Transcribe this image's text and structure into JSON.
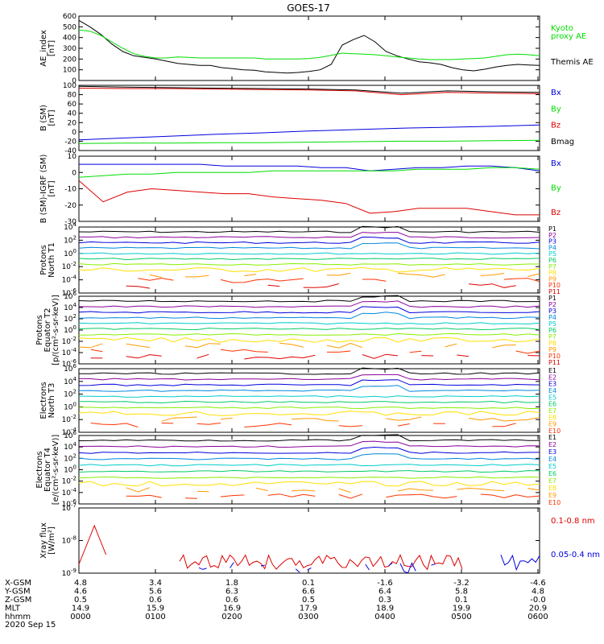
{
  "title": "GOES-17",
  "colors": {
    "black": "#000000",
    "green": "#00dd00",
    "blue": "#0000dd",
    "red": "#dd0000",
    "bmag": "#000000",
    "channel": [
      "#000000",
      "#8b0099",
      "#0000dd",
      "#0088dd",
      "#00cccc",
      "#00cc66",
      "#88ee00",
      "#ffe000",
      "#ff9900",
      "#ff3300",
      "#dd0000"
    ]
  },
  "chart_data": [
    {
      "type": "line",
      "ylabel": "AE_index\n[nT]",
      "ylim": [
        0,
        600
      ],
      "yticks": [
        "600",
        "500",
        "400",
        "300",
        "200",
        "100",
        "0"
      ],
      "legend": [
        {
          "label": "Kyoto\nproxy AE",
          "color": "green"
        },
        {
          "label": "Themis AE",
          "color": "black"
        }
      ],
      "series": [
        {
          "name": "Themis AE",
          "color": "black",
          "values": [
            560,
            500,
            430,
            340,
            270,
            230,
            215,
            200,
            180,
            160,
            150,
            140,
            140,
            120,
            110,
            100,
            95,
            80,
            75,
            70,
            75,
            85,
            100,
            150,
            330,
            380,
            420,
            360,
            270,
            230,
            200,
            175,
            165,
            150,
            120,
            100,
            90,
            105,
            125,
            140,
            150,
            145,
            140
          ]
        },
        {
          "name": "Kyoto proxy AE",
          "color": "green",
          "values": [
            470,
            460,
            420,
            360,
            300,
            250,
            225,
            210,
            210,
            220,
            215,
            210,
            210,
            210,
            210,
            210,
            210,
            200,
            200,
            200,
            200,
            205,
            215,
            235,
            255,
            250,
            245,
            240,
            230,
            220,
            210,
            200,
            195,
            195,
            195,
            200,
            205,
            210,
            225,
            240,
            245,
            240,
            230
          ]
        }
      ]
    },
    {
      "type": "line",
      "ylabel": "B (SM)\n[nT]",
      "ylim": [
        -40,
        100
      ],
      "yticks": [
        "100",
        "80",
        "60",
        "40",
        "20",
        "0",
        "-20",
        "-40"
      ],
      "legend": [
        {
          "label": "Bx",
          "color": "blue"
        },
        {
          "label": "By",
          "color": "green"
        },
        {
          "label": "Bz",
          "color": "red"
        },
        {
          "label": "Bmag",
          "color": "bmag"
        }
      ],
      "series": [
        {
          "name": "Bx",
          "color": "blue",
          "values": [
            -17,
            -13,
            -9,
            -5,
            -2,
            2,
            5,
            8,
            10,
            12,
            15
          ]
        },
        {
          "name": "By",
          "color": "green",
          "values": [
            -25,
            -24,
            -24,
            -23,
            -23,
            -22,
            -21,
            -20,
            -20,
            -19,
            -18
          ]
        },
        {
          "name": "Bz",
          "color": "red",
          "values": [
            94,
            93,
            93,
            92,
            91,
            90,
            88,
            80,
            85,
            83,
            82
          ]
        },
        {
          "name": "Bmag",
          "color": "bmag",
          "values": [
            98,
            96,
            95,
            94,
            93,
            92,
            90,
            83,
            88,
            86,
            85
          ]
        }
      ]
    },
    {
      "type": "line",
      "ylabel": "B (SM)-IGRF (SM)\n[nT]",
      "ylim": [
        -30,
        10
      ],
      "yticks": [
        "10",
        "0",
        "-10",
        "-20",
        "-30"
      ],
      "legend": [
        {
          "label": "Bx",
          "color": "blue"
        },
        {
          "label": "By",
          "color": "green"
        },
        {
          "label": "Bz",
          "color": "red"
        }
      ],
      "series": [
        {
          "name": "Bx",
          "color": "blue",
          "values": [
            5,
            5,
            5,
            5,
            5,
            5,
            4,
            4,
            4,
            4,
            3,
            3,
            1,
            2,
            3,
            3,
            4,
            4,
            3,
            1
          ]
        },
        {
          "name": "By",
          "color": "green",
          "values": [
            -3,
            -2,
            -1,
            -1,
            0,
            0,
            0,
            0,
            1,
            1,
            1,
            1,
            1,
            1,
            2,
            2,
            2,
            3,
            3,
            2
          ]
        },
        {
          "name": "Bz",
          "color": "red",
          "values": [
            -5,
            -18,
            -12,
            -10,
            -11,
            -12,
            -13,
            -13,
            -15,
            -16,
            -17,
            -19,
            -25,
            -24,
            -22,
            -22,
            -22,
            -24,
            -26,
            -26
          ]
        }
      ]
    },
    {
      "type": "line",
      "ylabel": "Protons\nNorth T1",
      "ylog": true,
      "yticks": [
        "10^4",
        "10^2",
        "10^0",
        "10^-2",
        "10^-4",
        "10^-6"
      ],
      "legend": [
        "P1",
        "P2",
        "P3",
        "P4",
        "P5",
        "P6",
        "P7",
        "P8",
        "P9",
        "P10",
        "P11"
      ]
    },
    {
      "type": "line",
      "ylabel": "Protons\nEquator T2\n[p/(cm²-s-sr-keV)]",
      "ylog": true,
      "yticks": [
        "10^6",
        "10^4",
        "10^2",
        "10^0",
        "10^-2",
        "10^-4",
        "10^-6"
      ],
      "legend": [
        "P1",
        "P2",
        "P3",
        "P4",
        "P5",
        "P6",
        "P7",
        "P8",
        "P9",
        "P10",
        "P11"
      ]
    },
    {
      "type": "line",
      "ylabel": "Electrons\nNorth T3",
      "ylog": true,
      "yticks": [
        "10^6",
        "10^4",
        "10^2",
        "10^0",
        "10^-2",
        "10^-4"
      ],
      "legend": [
        "E1",
        "E2",
        "E3",
        "E4",
        "E5",
        "E6",
        "E7",
        "E8",
        "E9",
        "E10"
      ]
    },
    {
      "type": "line",
      "ylabel": "Electrons\nEquator T4\n[e/(cm²-s-sr-keV)]",
      "ylog": true,
      "yticks": [
        "10^6",
        "10^4",
        "10^2",
        "10^0",
        "10^-2",
        "10^-4",
        "10^-6"
      ],
      "legend": [
        "E1",
        "E2",
        "E3",
        "E4",
        "E5",
        "E6",
        "E7",
        "E8",
        "E9",
        "E10"
      ]
    },
    {
      "type": "line",
      "ylabel": "Xray flux\n[W/m²]",
      "ylog": true,
      "yticks": [
        "10^-7",
        "10^-8",
        "10^-9"
      ],
      "legend": [
        {
          "label": "0.1-0.8 nm",
          "color": "red"
        },
        {
          "label": "0.05-0.4 nm",
          "color": "blue"
        }
      ]
    }
  ],
  "footer": {
    "row_labels": [
      "X-GSM",
      "Y-GSM",
      "Z-GSM",
      "MLT",
      "hhmm"
    ],
    "date": "2020 Sep 15",
    "columns": [
      {
        "X-GSM": "4.8",
        "Y-GSM": "4.6",
        "Z-GSM": "0.5",
        "MLT": "14.9",
        "hhmm": "0000"
      },
      {
        "X-GSM": "3.4",
        "Y-GSM": "5.6",
        "Z-GSM": "0.6",
        "MLT": "15.9",
        "hhmm": "0100"
      },
      {
        "X-GSM": "1.8",
        "Y-GSM": "6.3",
        "Z-GSM": "0.6",
        "MLT": "16.9",
        "hhmm": "0200"
      },
      {
        "X-GSM": "0.1",
        "Y-GSM": "6.6",
        "Z-GSM": "0.5",
        "MLT": "17.9",
        "hhmm": "0300"
      },
      {
        "X-GSM": "-1.6",
        "Y-GSM": "6.4",
        "Z-GSM": "0.3",
        "MLT": "18.9",
        "hhmm": "0400"
      },
      {
        "X-GSM": "-3.2",
        "Y-GSM": "5.8",
        "Z-GSM": "0.1",
        "MLT": "19.9",
        "hhmm": "0500"
      },
      {
        "X-GSM": "-4.6",
        "Y-GSM": "4.8",
        "Z-GSM": "-0.0",
        "MLT": "20.9",
        "hhmm": "0600"
      }
    ]
  }
}
